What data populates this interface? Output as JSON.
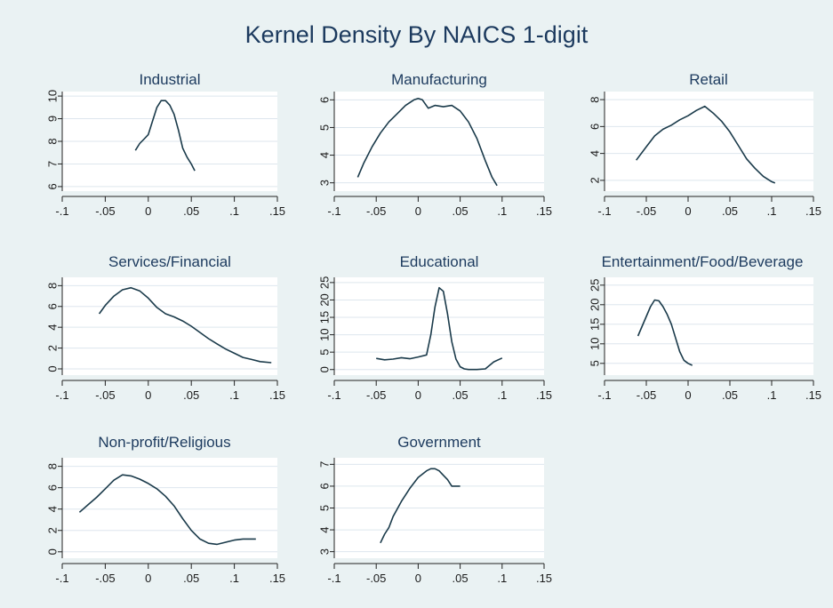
{
  "title": "Kernel Density By NAICS 1-digit",
  "colors": {
    "background": "#eaf2f3",
    "plot_background": "#ffffff",
    "title": "#1c3a5e",
    "line": "#1a3a4a",
    "grid": "#dde6ee"
  },
  "chart_data": [
    {
      "type": "line",
      "title": "Industrial",
      "xlim": [
        -0.1,
        0.15
      ],
      "xticks": [
        -0.1,
        -0.05,
        0,
        0.05,
        0.1,
        0.15
      ],
      "xtick_labels": [
        "-.1",
        "-.05",
        "0",
        ".05",
        ".1",
        ".15"
      ],
      "ylim": [
        5.8,
        10.2
      ],
      "yticks": [
        6,
        7,
        8,
        9,
        10
      ],
      "ytick_labels": [
        "6",
        "7",
        "8",
        "9",
        "10"
      ],
      "grid": true,
      "x": [
        -0.015,
        -0.01,
        -0.005,
        0.0,
        0.005,
        0.01,
        0.015,
        0.02,
        0.025,
        0.03,
        0.035,
        0.04,
        0.045,
        0.05,
        0.054
      ],
      "y": [
        7.6,
        7.9,
        8.1,
        8.3,
        8.9,
        9.5,
        9.8,
        9.8,
        9.6,
        9.2,
        8.5,
        7.7,
        7.3,
        7.0,
        6.7
      ]
    },
    {
      "type": "line",
      "title": "Manufacturing",
      "xlim": [
        -0.1,
        0.15
      ],
      "xticks": [
        -0.1,
        -0.05,
        0,
        0.05,
        0.1,
        0.15
      ],
      "xtick_labels": [
        "-.1",
        "-.05",
        "0",
        ".05",
        ".1",
        ".15"
      ],
      "ylim": [
        2.7,
        6.3
      ],
      "yticks": [
        3,
        4,
        5,
        6
      ],
      "ytick_labels": [
        "3",
        "4",
        "5",
        "6"
      ],
      "grid": true,
      "x": [
        -0.072,
        -0.065,
        -0.055,
        -0.045,
        -0.035,
        -0.025,
        -0.015,
        -0.005,
        0.0,
        0.005,
        0.012,
        0.02,
        0.03,
        0.04,
        0.05,
        0.06,
        0.07,
        0.08,
        0.088,
        0.094
      ],
      "y": [
        3.2,
        3.7,
        4.3,
        4.8,
        5.2,
        5.5,
        5.8,
        6.0,
        6.05,
        6.0,
        5.7,
        5.8,
        5.75,
        5.8,
        5.6,
        5.2,
        4.6,
        3.8,
        3.2,
        2.9
      ]
    },
    {
      "type": "line",
      "title": "Retail",
      "xlim": [
        -0.1,
        0.15
      ],
      "xticks": [
        -0.1,
        -0.05,
        0,
        0.05,
        0.1,
        0.15
      ],
      "xtick_labels": [
        "-.1",
        "-.05",
        "0",
        ".05",
        ".1",
        ".15"
      ],
      "ylim": [
        1.2,
        8.6
      ],
      "yticks": [
        2,
        4,
        6,
        8
      ],
      "ytick_labels": [
        "2",
        "4",
        "6",
        "8"
      ],
      "grid": true,
      "x": [
        -0.062,
        -0.05,
        -0.04,
        -0.03,
        -0.02,
        -0.01,
        0.0,
        0.01,
        0.02,
        0.03,
        0.04,
        0.05,
        0.06,
        0.07,
        0.08,
        0.09,
        0.1,
        0.104
      ],
      "y": [
        3.5,
        4.5,
        5.3,
        5.8,
        6.1,
        6.5,
        6.8,
        7.2,
        7.5,
        7.0,
        6.4,
        5.6,
        4.6,
        3.6,
        2.9,
        2.3,
        1.9,
        1.8
      ]
    },
    {
      "type": "line",
      "title": "Services/Financial",
      "xlim": [
        -0.1,
        0.15
      ],
      "xticks": [
        -0.1,
        -0.05,
        0,
        0.05,
        0.1,
        0.15
      ],
      "xtick_labels": [
        "-.1",
        "-.05",
        "0",
        ".05",
        ".1",
        ".15"
      ],
      "ylim": [
        -0.6,
        8.8
      ],
      "yticks": [
        0,
        2,
        4,
        6,
        8
      ],
      "ytick_labels": [
        "0",
        "2",
        "4",
        "6",
        "8"
      ],
      "grid": true,
      "x": [
        -0.057,
        -0.05,
        -0.04,
        -0.03,
        -0.02,
        -0.01,
        0.0,
        0.01,
        0.02,
        0.03,
        0.04,
        0.05,
        0.06,
        0.07,
        0.08,
        0.09,
        0.1,
        0.11,
        0.12,
        0.13,
        0.143
      ],
      "y": [
        5.3,
        6.1,
        7.0,
        7.6,
        7.8,
        7.5,
        6.8,
        5.9,
        5.3,
        5.0,
        4.6,
        4.1,
        3.5,
        2.9,
        2.4,
        1.9,
        1.5,
        1.1,
        0.9,
        0.7,
        0.6
      ]
    },
    {
      "type": "line",
      "title": "Educational",
      "xlim": [
        -0.1,
        0.15
      ],
      "xticks": [
        -0.1,
        -0.05,
        0,
        0.05,
        0.1,
        0.15
      ],
      "xtick_labels": [
        "-.1",
        "-.05",
        "0",
        ".05",
        ".1",
        ".15"
      ],
      "ylim": [
        -1.6,
        26.5
      ],
      "yticks": [
        0,
        5,
        10,
        15,
        20,
        25
      ],
      "ytick_labels": [
        "0",
        "5",
        "10",
        "15",
        "20",
        "25"
      ],
      "grid": true,
      "x": [
        -0.05,
        -0.04,
        -0.03,
        -0.02,
        -0.01,
        0.0,
        0.01,
        0.015,
        0.02,
        0.025,
        0.03,
        0.035,
        0.04,
        0.045,
        0.05,
        0.055,
        0.06,
        0.07,
        0.08,
        0.09,
        0.1
      ],
      "y": [
        3.2,
        2.8,
        3.0,
        3.4,
        3.1,
        3.6,
        4.2,
        10.0,
        18.0,
        23.5,
        22.5,
        16.0,
        8.0,
        3.0,
        0.8,
        0.2,
        0.0,
        0.0,
        0.2,
        2.2,
        3.3
      ]
    },
    {
      "type": "line",
      "title": "Entertainment/Food/Beverage",
      "xlim": [
        -0.1,
        0.15
      ],
      "xticks": [
        -0.1,
        -0.05,
        0,
        0.05,
        0.1,
        0.15
      ],
      "xtick_labels": [
        "-.1",
        "-.05",
        "0",
        ".05",
        ".1",
        ".15"
      ],
      "ylim": [
        2.0,
        27.0
      ],
      "yticks": [
        5,
        10,
        15,
        20,
        25
      ],
      "ytick_labels": [
        "5",
        "10",
        "15",
        "20",
        "25"
      ],
      "grid": true,
      "x": [
        -0.06,
        -0.055,
        -0.05,
        -0.045,
        -0.04,
        -0.035,
        -0.03,
        -0.025,
        -0.02,
        -0.015,
        -0.01,
        -0.005,
        0.0,
        0.005
      ],
      "y": [
        12.0,
        14.5,
        17.0,
        19.5,
        21.2,
        21.0,
        19.5,
        17.5,
        15.0,
        11.5,
        8.0,
        5.8,
        5.0,
        4.5
      ]
    },
    {
      "type": "line",
      "title": "Non-profit/Religious",
      "xlim": [
        -0.1,
        0.15
      ],
      "xticks": [
        -0.1,
        -0.05,
        0,
        0.05,
        0.1,
        0.15
      ],
      "xtick_labels": [
        "-.1",
        "-.05",
        "0",
        ".05",
        ".1",
        ".15"
      ],
      "ylim": [
        -0.6,
        8.8
      ],
      "yticks": [
        0,
        2,
        4,
        6,
        8
      ],
      "ytick_labels": [
        "0",
        "2",
        "4",
        "6",
        "8"
      ],
      "grid": true,
      "x": [
        -0.08,
        -0.07,
        -0.06,
        -0.05,
        -0.04,
        -0.03,
        -0.02,
        -0.01,
        0.0,
        0.01,
        0.02,
        0.03,
        0.04,
        0.05,
        0.06,
        0.07,
        0.08,
        0.09,
        0.1,
        0.11,
        0.12,
        0.125
      ],
      "y": [
        3.7,
        4.4,
        5.1,
        5.9,
        6.7,
        7.2,
        7.1,
        6.8,
        6.4,
        5.9,
        5.2,
        4.3,
        3.1,
        2.0,
        1.2,
        0.8,
        0.7,
        0.9,
        1.1,
        1.2,
        1.2,
        1.2
      ]
    },
    {
      "type": "line",
      "title": "Government",
      "xlim": [
        -0.1,
        0.15
      ],
      "xticks": [
        -0.1,
        -0.05,
        0,
        0.05,
        0.1,
        0.15
      ],
      "xtick_labels": [
        "-.1",
        "-.05",
        "0",
        ".05",
        ".1",
        ".15"
      ],
      "ylim": [
        2.7,
        7.3
      ],
      "yticks": [
        3,
        4,
        5,
        6,
        7
      ],
      "ytick_labels": [
        "3",
        "4",
        "5",
        "6",
        "7"
      ],
      "grid": true,
      "x": [
        -0.045,
        -0.04,
        -0.035,
        -0.03,
        -0.02,
        -0.01,
        0.0,
        0.01,
        0.015,
        0.02,
        0.025,
        0.03,
        0.035,
        0.04,
        0.045,
        0.05
      ],
      "y": [
        3.4,
        3.8,
        4.1,
        4.6,
        5.3,
        5.9,
        6.4,
        6.7,
        6.8,
        6.8,
        6.7,
        6.5,
        6.3,
        6.0,
        6.0,
        6.0
      ]
    }
  ]
}
